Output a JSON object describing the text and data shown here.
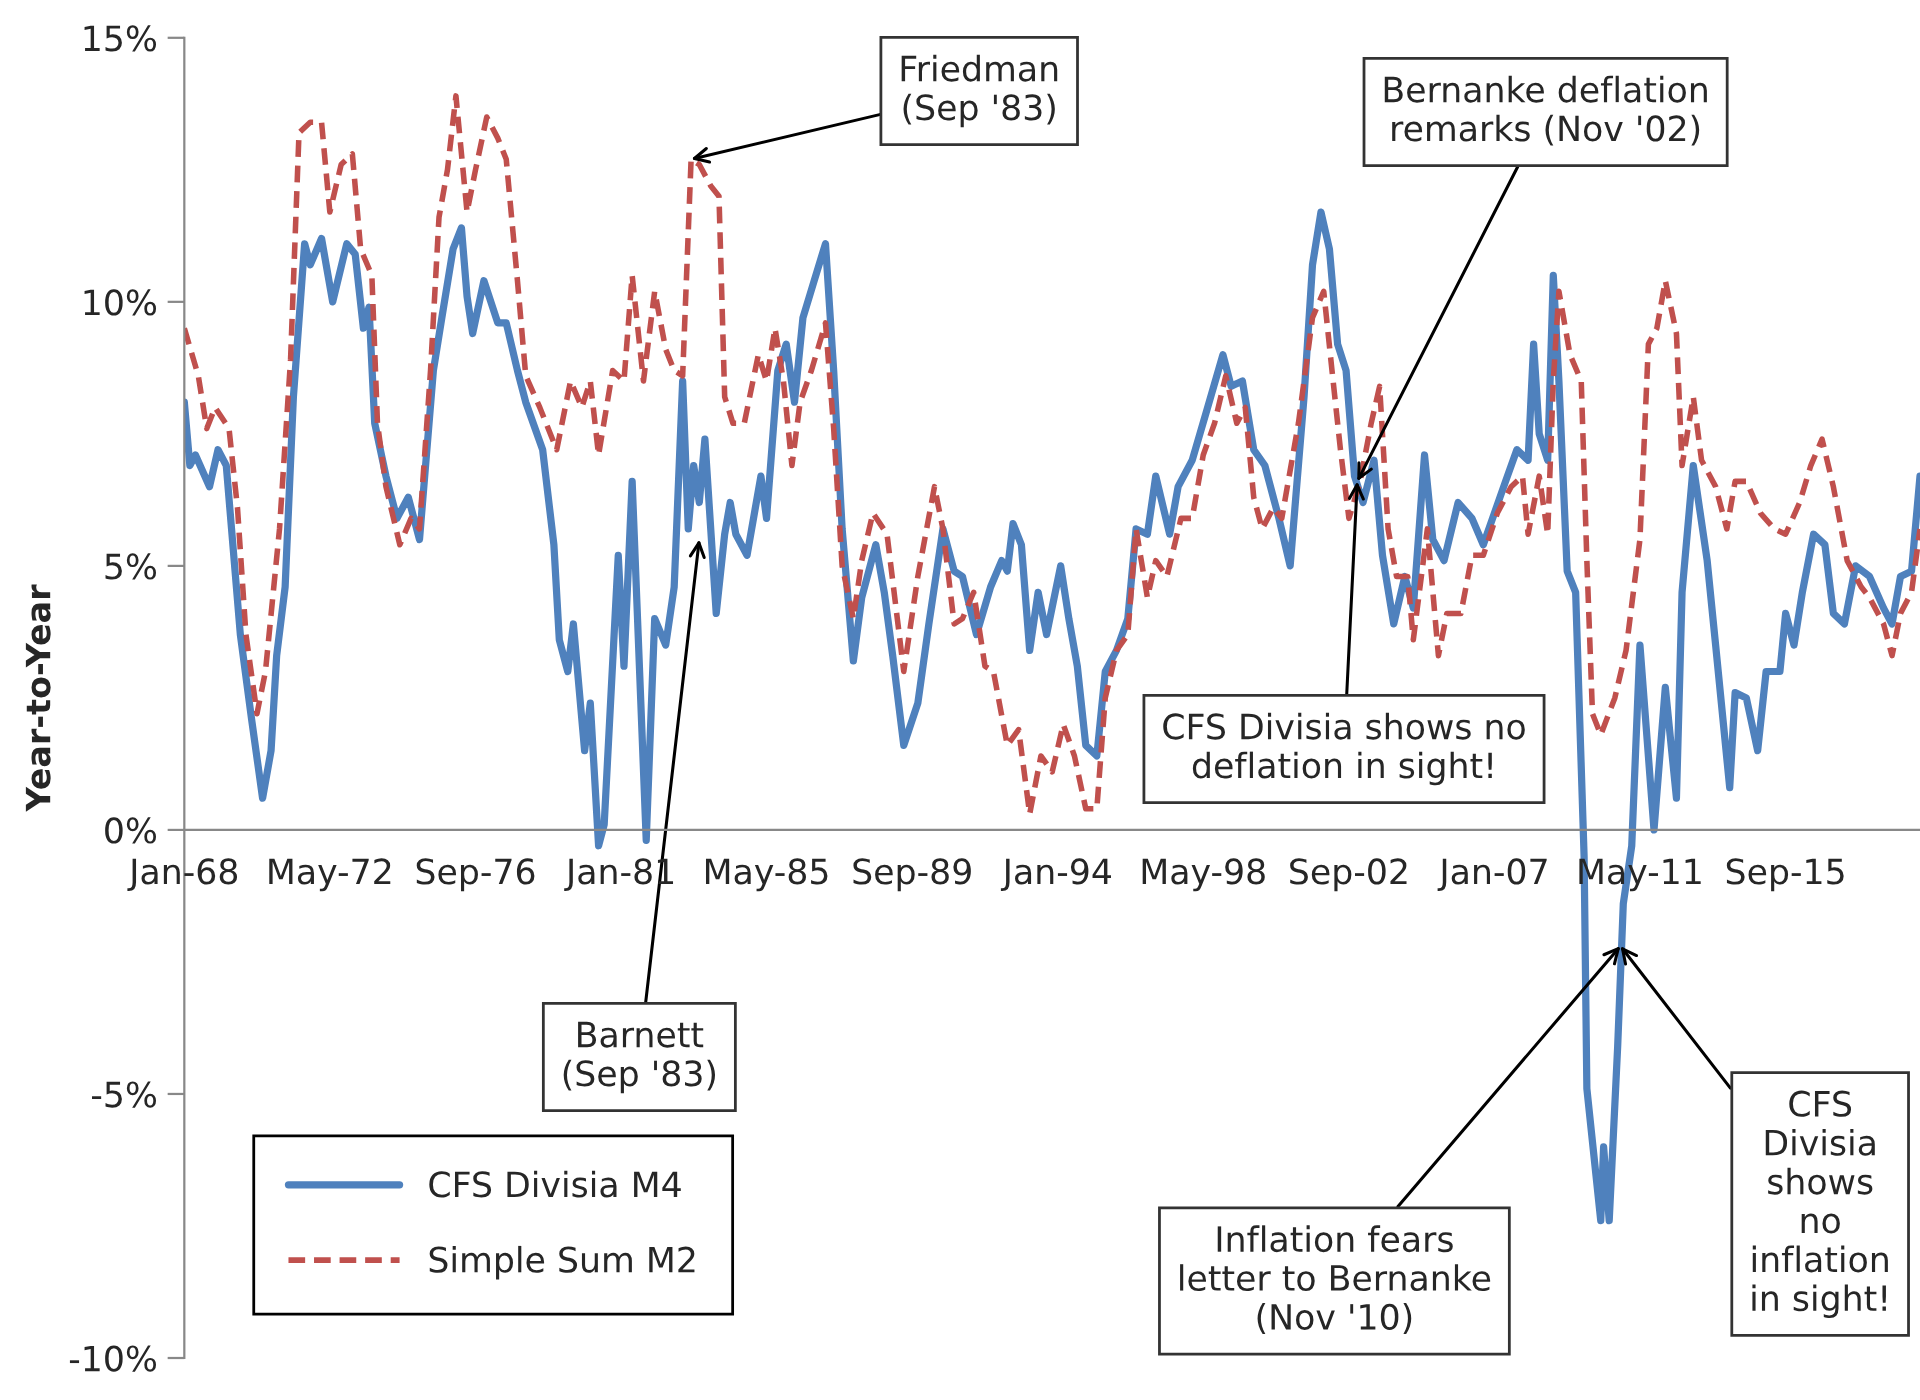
{
  "chart_data": {
    "type": "line",
    "ylabel": "Year-to-Year",
    "xlim": [
      "1968-01",
      "2019-09"
    ],
    "xticks": [
      {
        "value": "1968-01",
        "label": "Jan-68"
      },
      {
        "value": "1972-05",
        "label": "May-72"
      },
      {
        "value": "1976-09",
        "label": "Sep-76"
      },
      {
        "value": "1981-01",
        "label": "Jan-81"
      },
      {
        "value": "1985-05",
        "label": "May-85"
      },
      {
        "value": "1989-09",
        "label": "Sep-89"
      },
      {
        "value": "1994-01",
        "label": "Jan-94"
      },
      {
        "value": "1998-05",
        "label": "May-98"
      },
      {
        "value": "2002-09",
        "label": "Sep-02"
      },
      {
        "value": "2007-01",
        "label": "Jan-07"
      },
      {
        "value": "2011-05",
        "label": "May-11"
      },
      {
        "value": "2015-09",
        "label": "Sep-15"
      }
    ],
    "ylim": [
      -10,
      15
    ],
    "yticks": [
      {
        "value": -10,
        "label": "-10%"
      },
      {
        "value": -5,
        "label": "-5%"
      },
      {
        "value": 0,
        "label": "0%"
      },
      {
        "value": 5,
        "label": "5%"
      },
      {
        "value": 10,
        "label": "10%"
      },
      {
        "value": 15,
        "label": "15%"
      }
    ],
    "grid": false,
    "legend": "bottom left",
    "series": [
      {
        "name": "CFS Divisia M4",
        "color": "#4f81bd",
        "line_style": "solid",
        "x": [
          "1968-01",
          "1968-03",
          "1968-05",
          "1968-10",
          "1969-01",
          "1969-04",
          "1969-09",
          "1970-01",
          "1970-05",
          "1970-08",
          "1970-10",
          "1971-01",
          "1971-04",
          "1971-08",
          "1971-10",
          "1972-02",
          "1972-06",
          "1972-11",
          "1973-02",
          "1973-05",
          "1973-07",
          "1973-09",
          "1974-01",
          "1974-05",
          "1974-09",
          "1975-01",
          "1975-06",
          "1975-09",
          "1976-01",
          "1976-04",
          "1976-06",
          "1976-08",
          "1976-12",
          "1977-05",
          "1977-08",
          "1977-12",
          "1978-03",
          "1978-09",
          "1979-01",
          "1979-03",
          "1979-06",
          "1979-08",
          "1979-12",
          "1980-02",
          "1980-05",
          "1980-07",
          "1980-12",
          "1981-02",
          "1981-05",
          "1981-10",
          "1982-01",
          "1982-05",
          "1982-08",
          "1982-11",
          "1983-01",
          "1983-03",
          "1983-05",
          "1983-07",
          "1983-11",
          "1984-02",
          "1984-04",
          "1984-06",
          "1984-10",
          "1985-03",
          "1985-05",
          "1985-09",
          "1985-12",
          "1986-03",
          "1986-06",
          "1986-10",
          "1987-02",
          "1987-05",
          "1987-08",
          "1987-12",
          "1988-03",
          "1988-08",
          "1988-11",
          "1989-02",
          "1989-06",
          "1989-11",
          "1990-03",
          "1990-08",
          "1990-12",
          "1991-03",
          "1991-08",
          "1992-01",
          "1992-05",
          "1992-07",
          "1992-09",
          "1992-12",
          "1993-03",
          "1993-06",
          "1993-09",
          "1994-02",
          "1994-05",
          "1994-08",
          "1994-11",
          "1995-03",
          "1995-06",
          "1995-10",
          "1996-02",
          "1996-05",
          "1996-09",
          "1996-12",
          "1997-05",
          "1997-08",
          "1998-01",
          "1998-06",
          "1998-12",
          "1999-03",
          "1999-07",
          "1999-11",
          "2000-03",
          "2000-08",
          "2000-12",
          "2001-05",
          "2001-08",
          "2001-11",
          "2002-02",
          "2002-05",
          "2002-08",
          "2002-11",
          "2003-02",
          "2003-06",
          "2003-09",
          "2004-01",
          "2004-05",
          "2004-08",
          "2004-12",
          "2005-03",
          "2005-07",
          "2005-12",
          "2006-05",
          "2006-09",
          "2007-05",
          "2007-09",
          "2008-01",
          "2008-03",
          "2008-05",
          "2008-08",
          "2008-10",
          "2008-12",
          "2009-03",
          "2009-06",
          "2009-09",
          "2009-10",
          "2010-03",
          "2010-04",
          "2010-06",
          "2010-09",
          "2010-11",
          "2011-02",
          "2011-05",
          "2011-10",
          "2012-02",
          "2012-06",
          "2012-08",
          "2012-12",
          "2013-05",
          "2013-08",
          "2014-01",
          "2014-03",
          "2014-07",
          "2014-11",
          "2015-02",
          "2015-07",
          "2015-09",
          "2015-12",
          "2016-03",
          "2016-07",
          "2016-11",
          "2017-02",
          "2017-06",
          "2017-10",
          "2018-03",
          "2018-08",
          "2018-11",
          "2019-02",
          "2019-06",
          "2019-09"
        ],
        "values": [
          8.1,
          6.9,
          7.1,
          6.5,
          7.2,
          6.9,
          3.7,
          2.1,
          0.6,
          1.5,
          3.3,
          4.6,
          8.2,
          11.1,
          10.7,
          11.2,
          10.0,
          11.1,
          10.9,
          9.5,
          9.9,
          7.7,
          6.7,
          5.9,
          6.3,
          5.5,
          8.7,
          9.7,
          11.0,
          11.4,
          10.1,
          9.4,
          10.4,
          9.6,
          9.6,
          8.7,
          8.1,
          7.2,
          5.4,
          3.6,
          3.0,
          3.9,
          1.5,
          2.4,
          -0.3,
          0.1,
          5.2,
          3.1,
          6.6,
          -0.2,
          4.0,
          3.5,
          4.6,
          8.5,
          5.7,
          6.9,
          6.2,
          7.4,
          4.1,
          5.6,
          6.2,
          5.6,
          5.2,
          6.7,
          5.9,
          8.7,
          9.2,
          8.1,
          9.7,
          10.4,
          11.1,
          8.7,
          5.7,
          3.2,
          4.4,
          5.4,
          4.5,
          3.3,
          1.6,
          2.4,
          3.9,
          5.7,
          4.9,
          4.8,
          3.7,
          4.6,
          5.1,
          4.9,
          5.8,
          5.4,
          3.4,
          4.5,
          3.7,
          5.0,
          4.0,
          3.1,
          1.6,
          1.4,
          3.0,
          3.4,
          4.0,
          5.7,
          5.6,
          6.7,
          5.6,
          6.5,
          7.0,
          7.9,
          9.0,
          8.4,
          8.5,
          7.2,
          6.9,
          5.9,
          5.0,
          8.2,
          10.7,
          11.7,
          11.0,
          9.2,
          8.7,
          6.7,
          6.2,
          7.0,
          5.2,
          3.9,
          4.8,
          4.2,
          7.1,
          5.5,
          5.1,
          6.2,
          5.9,
          5.4,
          6.6,
          7.2,
          7.0,
          9.2,
          7.5,
          7.0,
          10.5,
          8.5,
          4.9,
          4.5,
          -0.5,
          -4.9,
          -7.4,
          -6.0,
          -7.4,
          -4.1,
          -1.4,
          -0.3,
          3.5,
          0.0,
          2.7,
          0.6,
          4.5,
          6.9,
          5.1,
          3.5,
          0.8,
          2.6,
          2.5,
          1.5,
          3.0,
          3.0,
          4.1,
          3.5,
          4.5,
          5.6,
          5.4,
          4.1,
          3.9,
          5.0,
          4.8,
          4.2,
          3.9,
          4.8,
          4.9,
          6.7
        ]
      },
      {
        "name": "Simple Sum M2",
        "color": "#c0504d",
        "line_style": "dashed",
        "x": [
          "1968-01",
          "1968-06",
          "1968-09",
          "1968-12",
          "1969-05",
          "1969-08",
          "1969-11",
          "1970-03",
          "1970-06",
          "1970-11",
          "1971-03",
          "1971-06",
          "1971-10",
          "1972-02",
          "1972-05",
          "1972-09",
          "1973-01",
          "1973-04",
          "1973-08",
          "1973-10",
          "1974-01",
          "1974-06",
          "1974-10",
          "1975-01",
          "1975-05",
          "1975-08",
          "1975-11",
          "1976-02",
          "1976-06",
          "1976-09",
          "1977-01",
          "1977-05",
          "1977-08",
          "1977-12",
          "1978-03",
          "1978-08",
          "1979-02",
          "1979-07",
          "1979-11",
          "1980-02",
          "1980-05",
          "1980-10",
          "1981-02",
          "1981-05",
          "1981-09",
          "1982-01",
          "1982-05",
          "1982-08",
          "1982-11",
          "1983-02",
          "1983-05",
          "1983-09",
          "1983-12",
          "1984-02",
          "1984-05",
          "1984-09",
          "1985-02",
          "1985-05",
          "1985-08",
          "1985-11",
          "1986-02",
          "1986-05",
          "1986-09",
          "1987-02",
          "1987-05",
          "1987-08",
          "1987-12",
          "1988-03",
          "1988-07",
          "1988-12",
          "1989-06",
          "1989-11",
          "1990-05",
          "1990-08",
          "1990-12",
          "1991-03",
          "1991-07",
          "1991-11",
          "1992-02",
          "1992-07",
          "1992-11",
          "1993-03",
          "1993-07",
          "1993-11",
          "1994-03",
          "1994-07",
          "1994-11",
          "1995-03",
          "1995-06",
          "1995-10",
          "1996-02",
          "1996-05",
          "1996-09",
          "1996-12",
          "1997-04",
          "1997-09",
          "1998-01",
          "1998-05",
          "1998-09",
          "1999-01",
          "1999-05",
          "1999-08",
          "1999-11",
          "2000-02",
          "2000-06",
          "2000-09",
          "2001-03",
          "2001-08",
          "2001-12",
          "2002-03",
          "2002-06",
          "2002-09",
          "2003-01",
          "2003-05",
          "2003-08",
          "2003-11",
          "2004-02",
          "2004-06",
          "2004-08",
          "2005-01",
          "2005-05",
          "2005-08",
          "2006-01",
          "2006-05",
          "2006-09",
          "2007-02",
          "2007-07",
          "2007-11",
          "2008-01",
          "2008-05",
          "2008-08",
          "2008-10",
          "2008-12",
          "2009-04",
          "2009-08",
          "2009-10",
          "2009-12",
          "2010-03",
          "2010-08",
          "2010-12",
          "2011-05",
          "2011-08",
          "2011-11",
          "2012-02",
          "2012-06",
          "2012-08",
          "2012-12",
          "2013-03",
          "2013-08",
          "2013-12",
          "2014-03",
          "2014-07",
          "2014-12",
          "2015-05",
          "2015-09",
          "2016-02",
          "2016-06",
          "2016-10",
          "2017-02",
          "2017-07",
          "2017-12",
          "2018-03",
          "2018-08",
          "2018-11",
          "2019-02",
          "2019-06",
          "2019-09"
        ],
        "values": [
          9.5,
          8.6,
          7.6,
          8.0,
          7.6,
          6.1,
          3.7,
          2.2,
          3.0,
          5.7,
          8.9,
          13.2,
          13.4,
          13.4,
          11.7,
          12.6,
          12.8,
          11.0,
          10.5,
          7.7,
          6.5,
          5.4,
          5.9,
          5.7,
          8.7,
          11.6,
          12.5,
          13.9,
          11.7,
          12.5,
          13.5,
          13.1,
          12.7,
          10.4,
          8.6,
          8.0,
          7.2,
          8.5,
          8.0,
          8.5,
          7.1,
          8.7,
          8.5,
          10.5,
          8.5,
          10.2,
          9.1,
          8.7,
          8.6,
          12.7,
          12.6,
          12.2,
          12.0,
          8.2,
          7.7,
          7.7,
          9.0,
          8.5,
          9.5,
          8.5,
          6.9,
          8.1,
          8.7,
          9.6,
          7.6,
          5.0,
          4.0,
          5.1,
          6.0,
          5.6,
          3.0,
          4.8,
          6.5,
          5.7,
          3.9,
          4.0,
          4.5,
          3.1,
          3.0,
          1.6,
          1.9,
          0.3,
          1.4,
          1.1,
          2.0,
          1.4,
          0.4,
          0.4,
          2.5,
          3.4,
          3.7,
          5.7,
          4.4,
          5.1,
          4.8,
          5.9,
          5.9,
          7.1,
          7.7,
          8.6,
          7.7,
          8.0,
          6.3,
          5.7,
          6.1,
          5.9,
          7.7,
          9.7,
          10.2,
          8.7,
          7.2,
          5.9,
          6.6,
          7.7,
          8.4,
          5.7,
          4.8,
          4.8,
          3.6,
          5.7,
          3.3,
          4.1,
          4.1,
          5.2,
          5.2,
          6.0,
          6.5,
          6.7,
          5.6,
          6.7,
          5.6,
          8.5,
          10.2,
          9.0,
          8.5,
          5.1,
          2.2,
          1.8,
          2.5,
          3.4,
          5.5,
          9.2,
          9.5,
          10.4,
          9.4,
          6.9,
          8.2,
          7.0,
          6.5,
          5.7,
          6.6,
          6.6,
          6.0,
          5.7,
          5.6,
          6.2,
          6.9,
          7.4,
          6.5,
          5.1,
          4.6,
          4.4,
          3.9,
          3.3,
          4.1,
          4.5,
          5.7
        ]
      }
    ],
    "annotations": [
      {
        "text": "Friedman\n(Sep '83)",
        "x": "1983-02",
        "y": 12.7
      },
      {
        "text": "Barnett\n(Sep '83)",
        "x": "1983-05",
        "y": 5.5
      },
      {
        "text": "Bernanke deflation\nremarks (Nov '02)",
        "x": "2002-12",
        "y": 6.6
      },
      {
        "text": "CFS Divisia shows no\ndeflation in sight!",
        "x": "2002-12",
        "y": 6.6
      },
      {
        "text": "Inflation fears\nletter to Bernanke\n(Nov '10)",
        "x": "2010-10",
        "y": -2.2
      },
      {
        "text": "CFS\nDivisia\nshows\nno\ninflation\nin sight!",
        "x": "2010-10",
        "y": -2.2
      }
    ]
  }
}
